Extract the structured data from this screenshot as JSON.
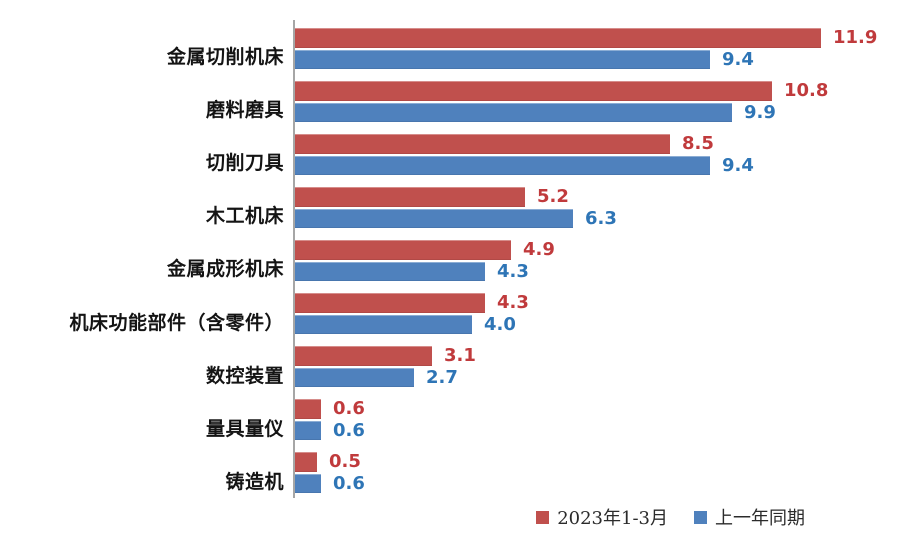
{
  "chart_data": {
    "type": "bar",
    "orientation": "horizontal",
    "title": "",
    "xlabel": "",
    "ylabel": "",
    "categories": [
      "金属切削机床",
      "磨料磨具",
      "切削刀具",
      "木工机床",
      "金属成形机床",
      "机床功能部件（含零件）",
      "数控装置",
      "量具量仪",
      "铸造机"
    ],
    "series": [
      {
        "name": "2023年1-3月",
        "color": "#C0504D",
        "label_color": "#C03A3C",
        "values": [
          11.9,
          10.8,
          8.5,
          5.2,
          4.9,
          4.3,
          3.1,
          0.6,
          0.5
        ],
        "labels": [
          "11.9",
          "10.8",
          "8.5",
          "5.2",
          "4.9",
          "4.3",
          "3.1",
          "0.6",
          "0.5"
        ]
      },
      {
        "name": "上一年同期",
        "color": "#4F81BD",
        "label_color": "#2E75B6",
        "values": [
          9.4,
          9.9,
          9.4,
          6.3,
          4.3,
          4.0,
          2.7,
          0.6,
          0.6
        ],
        "labels": [
          "9.4",
          "9.9",
          "9.4",
          "6.3",
          "4.3",
          "4.0",
          "2.7",
          "0.6",
          "0.6"
        ]
      }
    ],
    "xlim": [
      0,
      12
    ],
    "grid": false,
    "data_labels": true,
    "legend_position": "bottom-right",
    "axis_line_color": "#A6A6A6",
    "background_color": "#FFFFFF"
  }
}
